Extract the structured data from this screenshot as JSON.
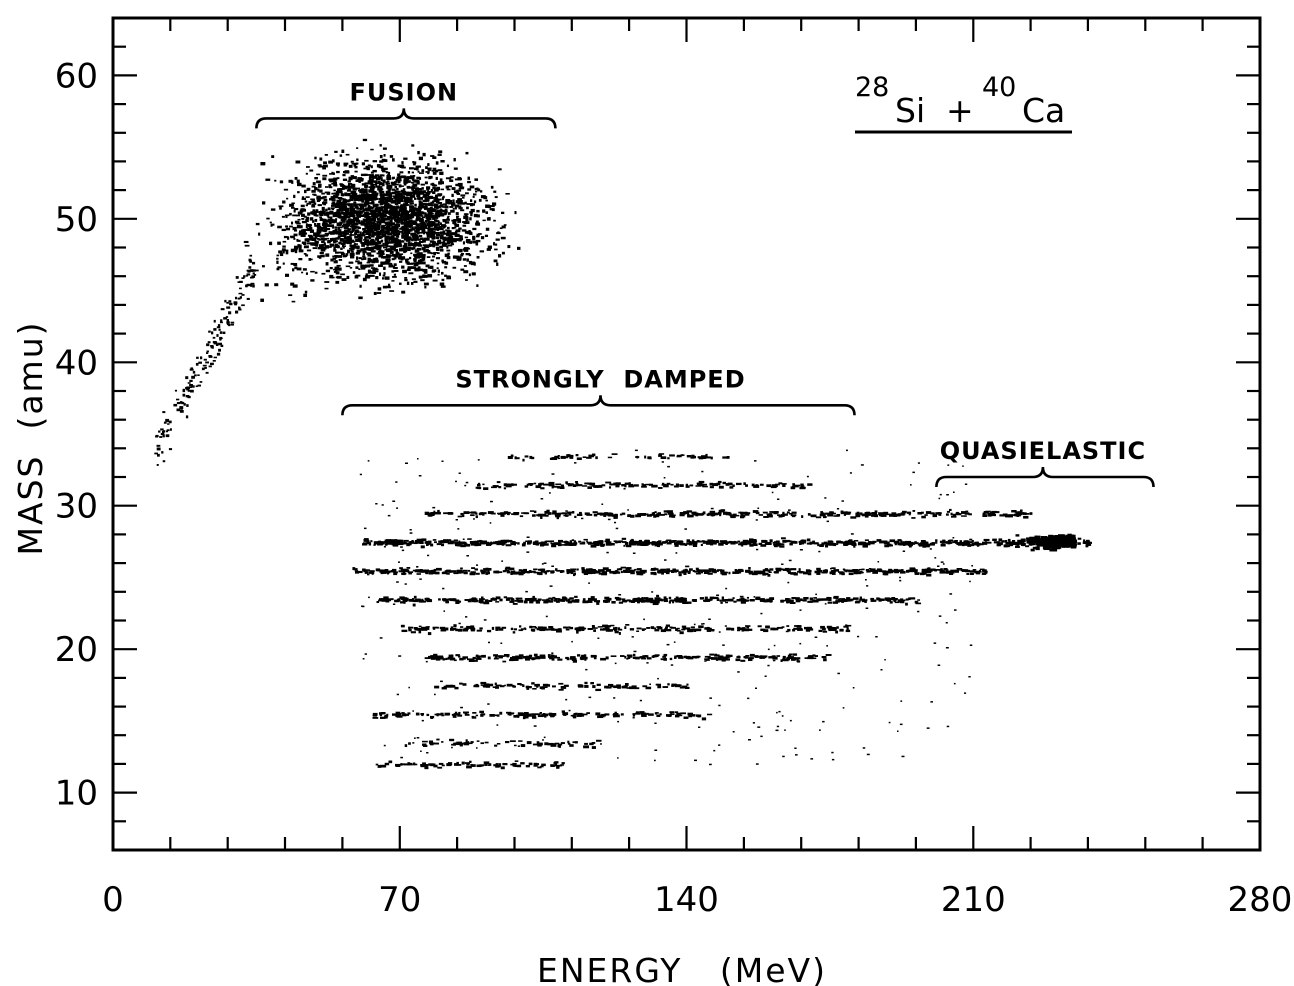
{
  "chart_data": {
    "type": "scatter",
    "title": "",
    "xlabel": "ENERGY   (MeV)",
    "ylabel": "MASS  (amu)",
    "xlim": [
      0,
      280
    ],
    "ylim": [
      6,
      64
    ],
    "x_ticks": [
      0,
      70,
      140,
      210,
      280
    ],
    "y_ticks": [
      10,
      20,
      30,
      40,
      50,
      60
    ],
    "x_minor_step": 14,
    "y_minor_step": 2,
    "grid": false,
    "reaction": {
      "projectile_mass": "28",
      "projectile": "Si",
      "plus": "+",
      "target_mass": "40",
      "target": "Ca"
    },
    "regions": [
      {
        "label": "FUSION",
        "x_range": [
          35,
          108
        ],
        "y": 57,
        "center_x": 71,
        "ellipse": {
          "cx": 70,
          "cy": 50,
          "rx": 38,
          "ry": 6
        }
      },
      {
        "label": "STRONGLY  DAMPED",
        "x_range": [
          56,
          181
        ],
        "y": 37,
        "center_x": 119,
        "ellipse": {
          "cx": 125,
          "cy": 24,
          "rx": 55,
          "ry": 11
        }
      },
      {
        "label": "QUASIELASTIC",
        "x_range": [
          201,
          254
        ],
        "y": 32,
        "center_x": 227,
        "ellipse": {
          "cx": 215,
          "cy": 27.5,
          "rx": 25,
          "ry": 2.5
        }
      }
    ],
    "mass_bands": [
      {
        "mass": 12,
        "x_range": [
          63,
          113
        ],
        "density": 0.4
      },
      {
        "mass": 13.5,
        "x_range": [
          70,
          118
        ],
        "density": 0.3
      },
      {
        "mass": 15.5,
        "x_range": [
          63,
          146
        ],
        "density": 0.45
      },
      {
        "mass": 17.5,
        "x_range": [
          78,
          140
        ],
        "density": 0.35
      },
      {
        "mass": 19.5,
        "x_range": [
          76,
          174
        ],
        "density": 0.55
      },
      {
        "mass": 21.5,
        "x_range": [
          70,
          181
        ],
        "density": 0.5
      },
      {
        "mass": 23.5,
        "x_range": [
          64,
          196
        ],
        "density": 0.7
      },
      {
        "mass": 25.5,
        "x_range": [
          58,
          213
        ],
        "density": 0.75
      },
      {
        "mass": 27.5,
        "x_range": [
          60,
          238
        ],
        "density": 0.9
      },
      {
        "mass": 29.5,
        "x_range": [
          76,
          224
        ],
        "density": 0.55
      },
      {
        "mass": 31.5,
        "x_range": [
          88,
          170
        ],
        "density": 0.4
      },
      {
        "mass": 33.5,
        "x_range": [
          96,
          150
        ],
        "density": 0.25
      }
    ],
    "peak": {
      "x": 234,
      "mass": 27.6
    },
    "fusion_tail": {
      "x_range": [
        10,
        35
      ],
      "mass_range": [
        34,
        47
      ]
    }
  }
}
